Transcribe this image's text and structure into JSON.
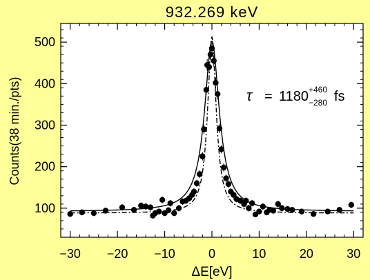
{
  "chart_data": {
    "type": "scatter",
    "title": "932.269 keV",
    "xlabel": "ΔE[eV]",
    "ylabel": "Counts(38 min./pts)",
    "xlim": [
      -32,
      32
    ],
    "ylim": [
      30,
      545
    ],
    "xticks": [
      -30,
      -20,
      -10,
      0,
      10,
      20,
      30
    ],
    "yticks": [
      100,
      200,
      300,
      400,
      500
    ],
    "grid": false,
    "legend": "none",
    "annotation": {
      "symbol": "τ",
      "equals": "=",
      "value": "1180",
      "plus": "+460",
      "minus": "−280",
      "unit": "fs"
    },
    "points": [
      {
        "x": -30.0,
        "y": 86,
        "err": 7
      },
      {
        "x": -27.5,
        "y": 90,
        "err": 7
      },
      {
        "x": -25.0,
        "y": 88,
        "err": 7
      },
      {
        "x": -22.5,
        "y": 94,
        "err": 7
      },
      {
        "x": -19.0,
        "y": 102,
        "err": 8
      },
      {
        "x": -16.5,
        "y": 96,
        "err": 7
      },
      {
        "x": -15.0,
        "y": 106,
        "err": 8
      },
      {
        "x": -14.0,
        "y": 104,
        "err": 8
      },
      {
        "x": -13.0,
        "y": 102,
        "err": 8
      },
      {
        "x": -12.5,
        "y": 82,
        "err": 7
      },
      {
        "x": -12.0,
        "y": 88,
        "err": 7
      },
      {
        "x": -11.2,
        "y": 92,
        "err": 7
      },
      {
        "x": -10.5,
        "y": 120,
        "err": 8
      },
      {
        "x": -10.0,
        "y": 88,
        "err": 7
      },
      {
        "x": -9.2,
        "y": 95,
        "err": 7
      },
      {
        "x": -8.8,
        "y": 112,
        "err": 8
      },
      {
        "x": -8.0,
        "y": 88,
        "err": 7
      },
      {
        "x": -7.0,
        "y": 100,
        "err": 8
      },
      {
        "x": -6.2,
        "y": 116,
        "err": 8
      },
      {
        "x": -5.5,
        "y": 118,
        "err": 8
      },
      {
        "x": -4.8,
        "y": 124,
        "err": 8
      },
      {
        "x": -4.2,
        "y": 132,
        "err": 8
      },
      {
        "x": -3.8,
        "y": 140,
        "err": 9
      },
      {
        "x": -3.2,
        "y": 160,
        "err": 9
      },
      {
        "x": -2.6,
        "y": 182,
        "err": 9
      },
      {
        "x": -2.0,
        "y": 225,
        "err": 10
      },
      {
        "x": -1.7,
        "y": 290,
        "err": 11
      },
      {
        "x": -1.2,
        "y": 385,
        "err": 13
      },
      {
        "x": -1.0,
        "y": 445,
        "err": 14
      },
      {
        "x": -0.6,
        "y": 440,
        "err": 14
      },
      {
        "x": -0.3,
        "y": 470,
        "err": 14
      },
      {
        "x": 0.0,
        "y": 485,
        "err": 14
      },
      {
        "x": 0.4,
        "y": 455,
        "err": 14
      },
      {
        "x": 0.8,
        "y": 402,
        "err": 13
      },
      {
        "x": 1.2,
        "y": 375,
        "err": 13
      },
      {
        "x": 1.6,
        "y": 292,
        "err": 11
      },
      {
        "x": 2.0,
        "y": 242,
        "err": 10
      },
      {
        "x": 2.5,
        "y": 198,
        "err": 10
      },
      {
        "x": 3.0,
        "y": 172,
        "err": 9
      },
      {
        "x": 3.5,
        "y": 158,
        "err": 9
      },
      {
        "x": 4.0,
        "y": 140,
        "err": 9
      },
      {
        "x": 4.6,
        "y": 132,
        "err": 8
      },
      {
        "x": 5.2,
        "y": 122,
        "err": 8
      },
      {
        "x": 6.0,
        "y": 118,
        "err": 8
      },
      {
        "x": 6.8,
        "y": 110,
        "err": 8
      },
      {
        "x": 7.2,
        "y": 118,
        "err": 8
      },
      {
        "x": 7.8,
        "y": 100,
        "err": 8
      },
      {
        "x": 8.5,
        "y": 112,
        "err": 8
      },
      {
        "x": 9.2,
        "y": 85,
        "err": 7
      },
      {
        "x": 10.0,
        "y": 92,
        "err": 7
      },
      {
        "x": 10.8,
        "y": 104,
        "err": 8
      },
      {
        "x": 11.6,
        "y": 90,
        "err": 7
      },
      {
        "x": 12.2,
        "y": 96,
        "err": 7
      },
      {
        "x": 13.0,
        "y": 94,
        "err": 7
      },
      {
        "x": 14.0,
        "y": 110,
        "err": 8
      },
      {
        "x": 14.8,
        "y": 100,
        "err": 8
      },
      {
        "x": 16.0,
        "y": 98,
        "err": 7
      },
      {
        "x": 17.0,
        "y": 96,
        "err": 7
      },
      {
        "x": 19.0,
        "y": 92,
        "err": 7
      },
      {
        "x": 21.5,
        "y": 86,
        "err": 7
      },
      {
        "x": 24.5,
        "y": 92,
        "err": 7
      },
      {
        "x": 27.0,
        "y": 96,
        "err": 7
      },
      {
        "x": 29.5,
        "y": 108,
        "err": 8
      }
    ],
    "series": [
      {
        "style": "solid",
        "baseline": 92,
        "peak": 502,
        "center": 0.0,
        "hwhm": 1.9
      },
      {
        "style": "dash-dot",
        "baseline": 88,
        "peak": 512,
        "center": 0.0,
        "hwhm": 1.1
      }
    ],
    "colors": {
      "background": "#ffff99",
      "plot": "#ffffff",
      "ink": "#000000"
    }
  }
}
